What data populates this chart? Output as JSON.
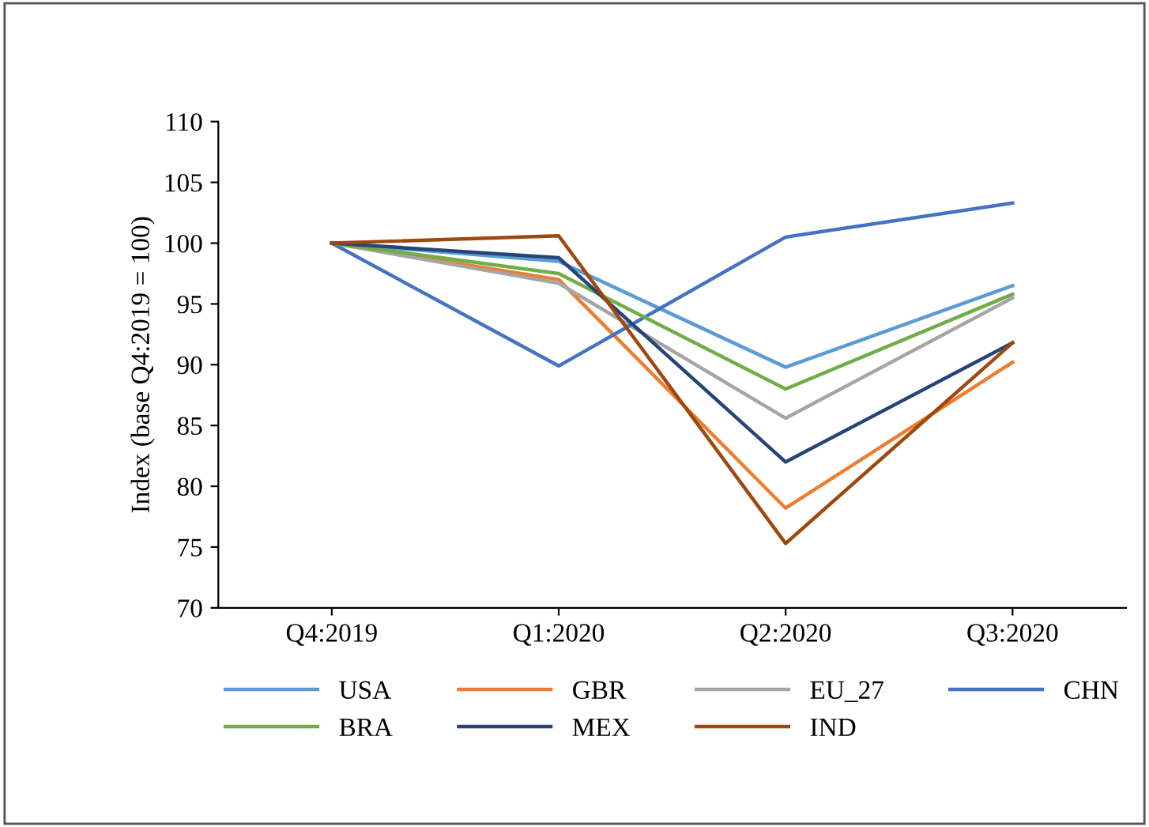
{
  "chart_data": {
    "type": "line",
    "ylabel": "Index (base Q4:2019 = 100)",
    "categories": [
      "Q4:2019",
      "Q1:2020",
      "Q2:2020",
      "Q3:2020"
    ],
    "series": [
      {
        "name": "USA",
        "color": "#5b9bd5",
        "values": [
          100,
          98.5,
          89.8,
          96.5
        ]
      },
      {
        "name": "GBR",
        "color": "#ed7d31",
        "values": [
          100,
          97,
          78.2,
          90.2
        ]
      },
      {
        "name": "EU_27",
        "color": "#a5a5a5",
        "values": [
          100,
          96.7,
          85.6,
          95.5
        ]
      },
      {
        "name": "CHN",
        "color": "#4472c4",
        "values": [
          100,
          89.9,
          100.5,
          103.3
        ]
      },
      {
        "name": "BRA",
        "color": "#70ad47",
        "values": [
          100,
          97.5,
          88,
          95.8
        ]
      },
      {
        "name": "MEX",
        "color": "#264478",
        "values": [
          100,
          98.8,
          82,
          91.8
        ]
      },
      {
        "name": "IND",
        "color": "#9e480e",
        "values": [
          100,
          100.6,
          75.3,
          91.8
        ]
      }
    ],
    "ylim": [
      70,
      110
    ],
    "yticks": [
      70,
      75,
      80,
      85,
      90,
      95,
      100,
      105,
      110
    ],
    "grid": false,
    "legend": "bottom",
    "marker": "none",
    "line_style": "solid"
  }
}
